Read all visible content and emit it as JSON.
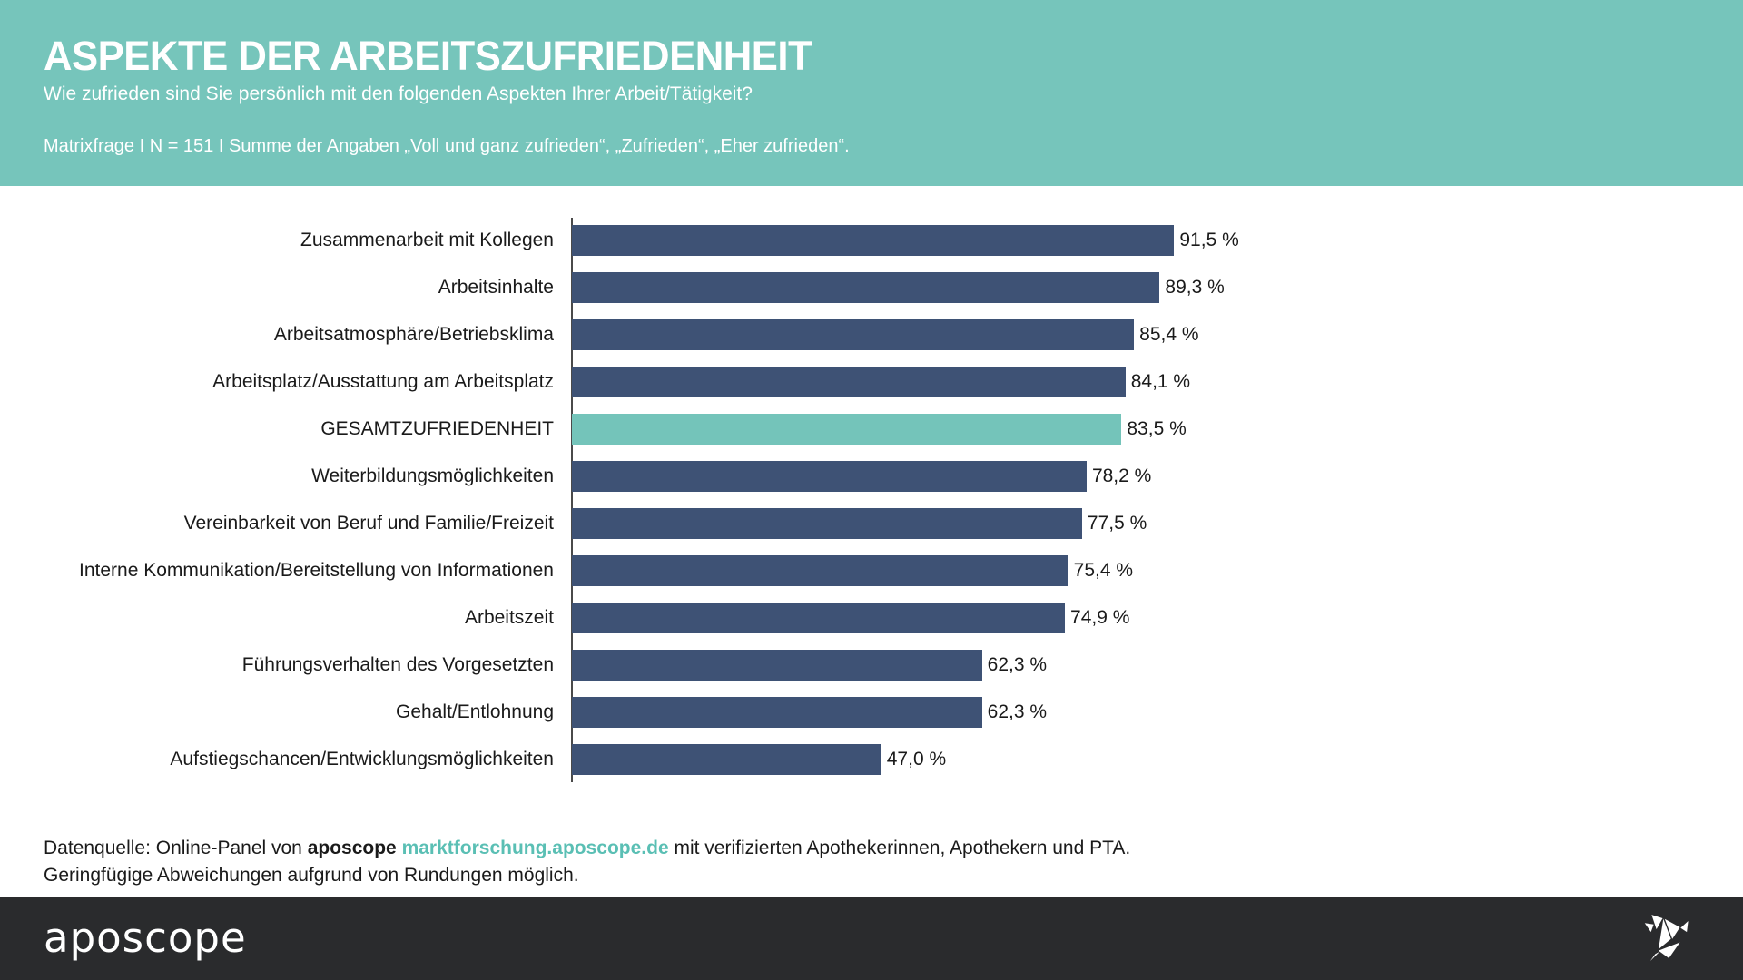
{
  "chart_data": {
    "type": "bar",
    "orientation": "horizontal",
    "title": "ASPEKTE DER ARBEITSZUFRIEDENHEIT",
    "subtitle": "Wie zufrieden sind Sie persönlich mit den folgenden Aspekten Ihrer Arbeit/Tätigkeit?",
    "note": "Matrixfrage I N = 151 I Summe der Angaben „Voll und ganz zufrieden“, „Zufrieden“, „Eher zufrieden“.",
    "categories": [
      "Zusammenarbeit mit Kollegen",
      "Arbeitsinhalte",
      "Arbeitsatmosphäre/Betriebsklima",
      "Arbeitsplatz/Ausstattung am Arbeitsplatz",
      "GESAMTZUFRIEDENHEIT",
      "Weiterbildungsmöglichkeiten",
      "Vereinbarkeit von Beruf und Familie/Freizeit",
      "Interne Kommunikation/Bereitstellung von Informationen",
      "Arbeitszeit",
      "Führungsverhalten des Vorgesetzten",
      "Gehalt/Entlohnung",
      "Aufstiegschancen/Entwicklungsmöglichkeiten"
    ],
    "values": [
      91.5,
      89.3,
      85.4,
      84.1,
      83.5,
      78.2,
      77.5,
      75.4,
      74.9,
      62.3,
      62.3,
      47.0
    ],
    "value_labels": [
      "91,5 %",
      "89,3 %",
      "85,4 %",
      "84,1 %",
      "83,5 %",
      "78,2 %",
      "77,5 %",
      "75,4 %",
      "74,9 %",
      "62,3 %",
      "62,3 %",
      "47,0 %"
    ],
    "highlight_index": 4,
    "highlight_category": "GESAMTZUFRIEDENHEIT",
    "xlim": [
      0,
      100
    ],
    "unit": "%",
    "grid": false,
    "legend": false,
    "value_label_position": "end"
  },
  "source": {
    "line1_prefix": "Datenquelle: Online-Panel von ",
    "line1_brand": "aposcope",
    "line1_space": " ",
    "line1_link": "marktforschung.aposcope.de",
    "line1_suffix": " mit verifizierten Apothekerinnen, Apothekern und PTA.",
    "line2": "Geringfügige Abweichungen aufgrund von Rundungen möglich."
  },
  "footer": {
    "logo_text": "aposcope",
    "bird_icon": "origami-bird-icon"
  },
  "theme": {
    "header_background": "#76c5bb",
    "footer_background": "#2a2b2d",
    "bar_color": "#3e5275",
    "highlight_color": "#74c4ba",
    "link_color": "#5abfb4",
    "axis_color": "#4a4a4a",
    "text_color": "#1a1a1a"
  }
}
